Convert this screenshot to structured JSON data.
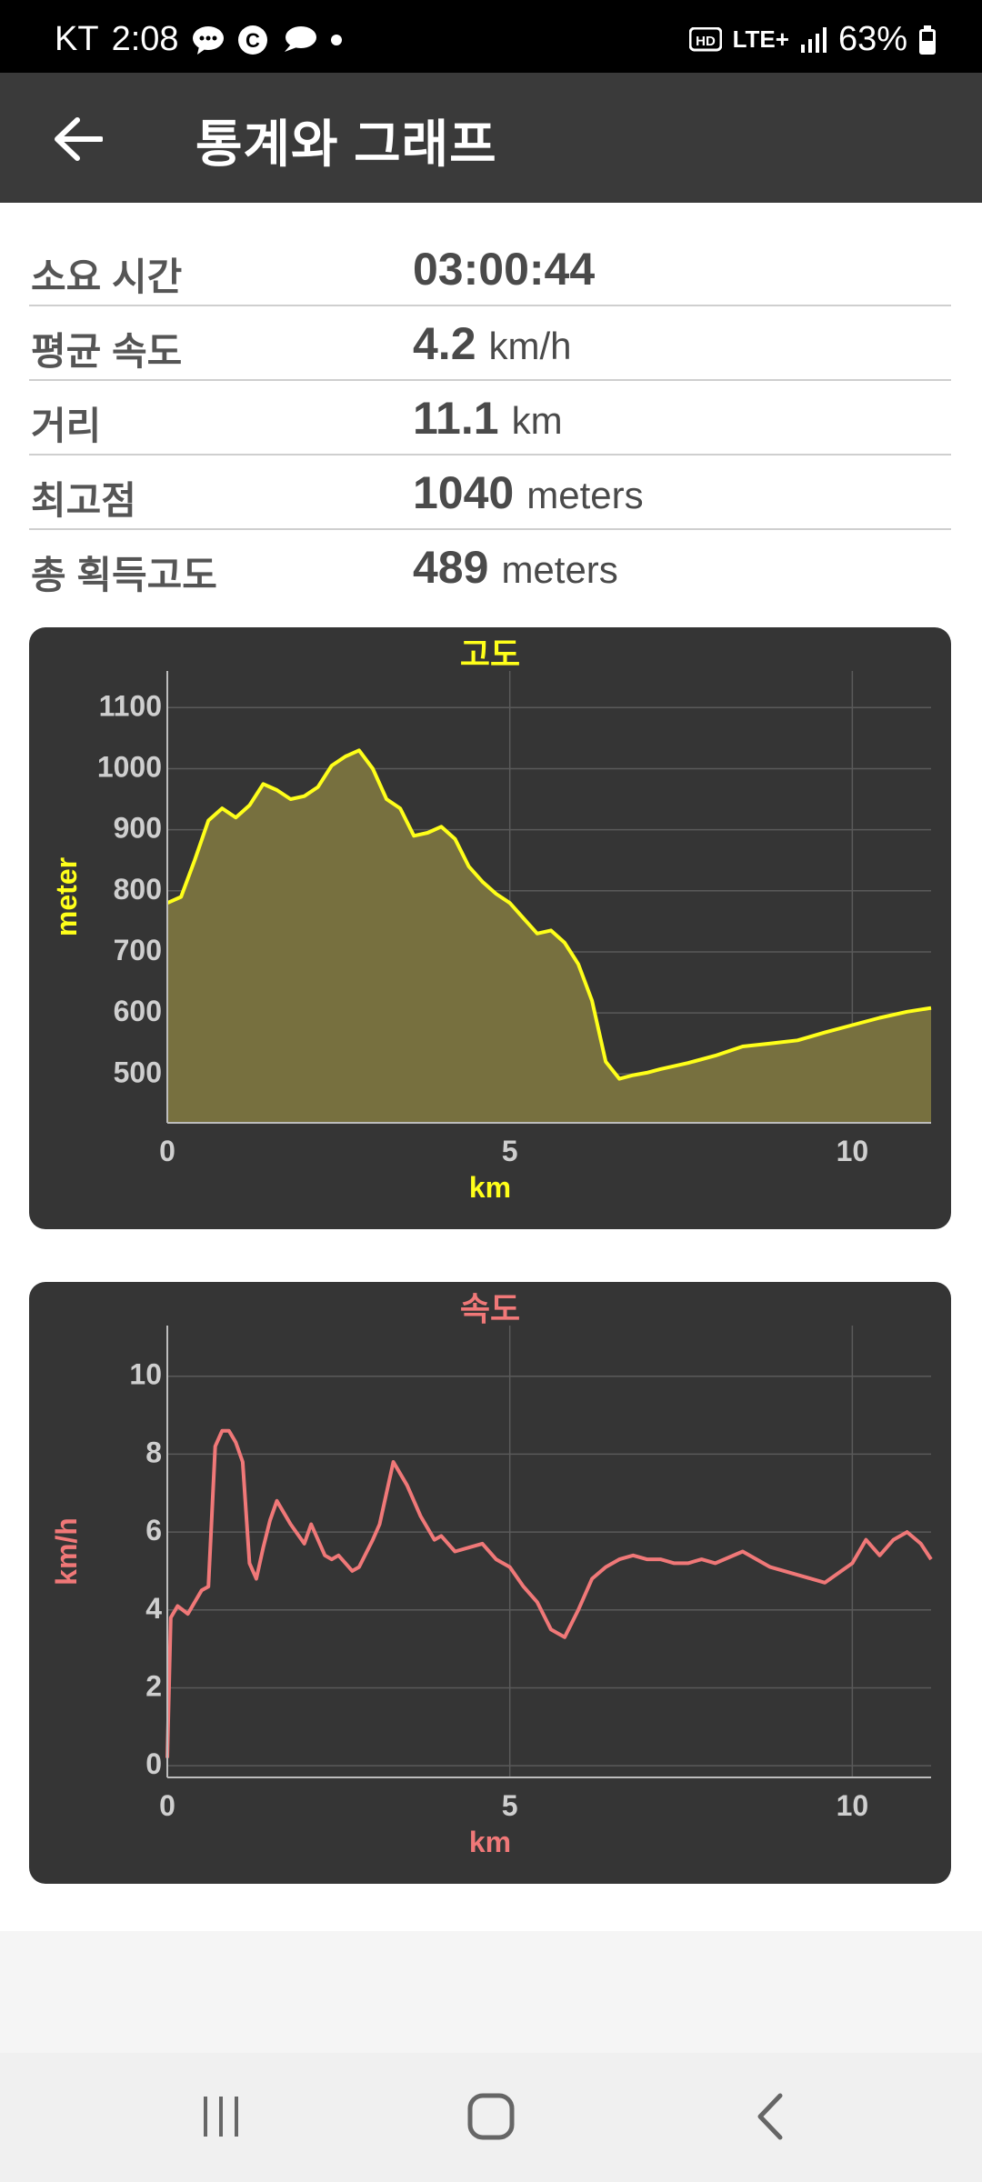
{
  "status_bar": {
    "carrier": "KT",
    "time": "2:08",
    "network": "LTE+",
    "battery": "63%"
  },
  "app_bar": {
    "title": "통계와 그래프"
  },
  "stats": [
    {
      "label": "소요 시간",
      "value": "03:00:44",
      "unit": ""
    },
    {
      "label": "평균 속도",
      "value": "4.2",
      "unit": "km/h"
    },
    {
      "label": "거리",
      "value": "11.1",
      "unit": "km"
    },
    {
      "label": "최고점",
      "value": "1040",
      "unit": "meters"
    },
    {
      "label": "총 획득고도",
      "value": "489",
      "unit": "meters"
    }
  ],
  "icons": {
    "back": "arrow-left-icon",
    "recents": "recents-icon",
    "home": "home-icon",
    "nav_back": "chevron-left-icon"
  },
  "chart_data": [
    {
      "type": "area",
      "title": "고도",
      "xlabel": "km",
      "ylabel": "meter",
      "color": "#ffff1a",
      "fill": "#77703f",
      "xlim": [
        0,
        11.15
      ],
      "ylim": [
        420,
        1160
      ],
      "xticks": [
        0,
        5,
        10
      ],
      "yticks": [
        500,
        600,
        700,
        800,
        900,
        1000,
        1100
      ],
      "grid": true,
      "x": [
        0,
        0.2,
        0.4,
        0.6,
        0.8,
        1.0,
        1.2,
        1.4,
        1.6,
        1.8,
        2.0,
        2.2,
        2.4,
        2.6,
        2.8,
        3.0,
        3.2,
        3.4,
        3.6,
        3.8,
        4.0,
        4.2,
        4.4,
        4.6,
        4.8,
        5.0,
        5.2,
        5.4,
        5.6,
        5.8,
        6.0,
        6.2,
        6.4,
        6.6,
        6.8,
        7.0,
        7.2,
        7.6,
        8.0,
        8.4,
        8.8,
        9.2,
        9.6,
        10.0,
        10.4,
        10.8,
        11.15
      ],
      "y": [
        780,
        790,
        850,
        915,
        935,
        920,
        940,
        975,
        965,
        950,
        955,
        970,
        1005,
        1020,
        1030,
        1000,
        950,
        935,
        890,
        895,
        905,
        885,
        840,
        815,
        795,
        780,
        755,
        730,
        735,
        715,
        680,
        620,
        520,
        492,
        498,
        502,
        508,
        518,
        530,
        545,
        550,
        555,
        568,
        580,
        592,
        602,
        608
      ]
    },
    {
      "type": "line",
      "title": "속도",
      "xlabel": "km",
      "ylabel": "km/h",
      "color": "#f07878",
      "xlim": [
        0,
        11.15
      ],
      "ylim": [
        -0.3,
        11.3
      ],
      "xticks": [
        0,
        5,
        10
      ],
      "yticks": [
        0,
        2,
        4,
        6,
        8,
        10
      ],
      "grid": true,
      "x": [
        0,
        0.05,
        0.15,
        0.3,
        0.4,
        0.5,
        0.6,
        0.7,
        0.8,
        0.9,
        1.0,
        1.1,
        1.2,
        1.3,
        1.4,
        1.5,
        1.6,
        1.8,
        2.0,
        2.1,
        2.3,
        2.4,
        2.5,
        2.7,
        2.8,
        3.0,
        3.1,
        3.3,
        3.5,
        3.7,
        3.9,
        4.0,
        4.2,
        4.4,
        4.6,
        4.8,
        5.0,
        5.2,
        5.4,
        5.6,
        5.8,
        6.0,
        6.2,
        6.4,
        6.6,
        6.8,
        7.0,
        7.2,
        7.4,
        7.6,
        7.8,
        8.0,
        8.4,
        8.8,
        9.2,
        9.6,
        10.0,
        10.2,
        10.4,
        10.6,
        10.8,
        11.0,
        11.15
      ],
      "y": [
        0.2,
        3.8,
        4.1,
        3.9,
        4.2,
        4.5,
        4.6,
        8.2,
        8.6,
        8.6,
        8.3,
        7.8,
        5.2,
        4.8,
        5.6,
        6.3,
        6.8,
        6.2,
        5.7,
        6.2,
        5.4,
        5.3,
        5.4,
        5.0,
        5.1,
        5.8,
        6.2,
        7.8,
        7.2,
        6.4,
        5.8,
        5.9,
        5.5,
        5.6,
        5.7,
        5.3,
        5.1,
        4.6,
        4.2,
        3.5,
        3.3,
        4.0,
        4.8,
        5.1,
        5.3,
        5.4,
        5.3,
        5.3,
        5.2,
        5.2,
        5.3,
        5.2,
        5.5,
        5.1,
        4.9,
        4.7,
        5.2,
        5.8,
        5.4,
        5.8,
        6.0,
        5.7,
        5.3
      ]
    }
  ]
}
